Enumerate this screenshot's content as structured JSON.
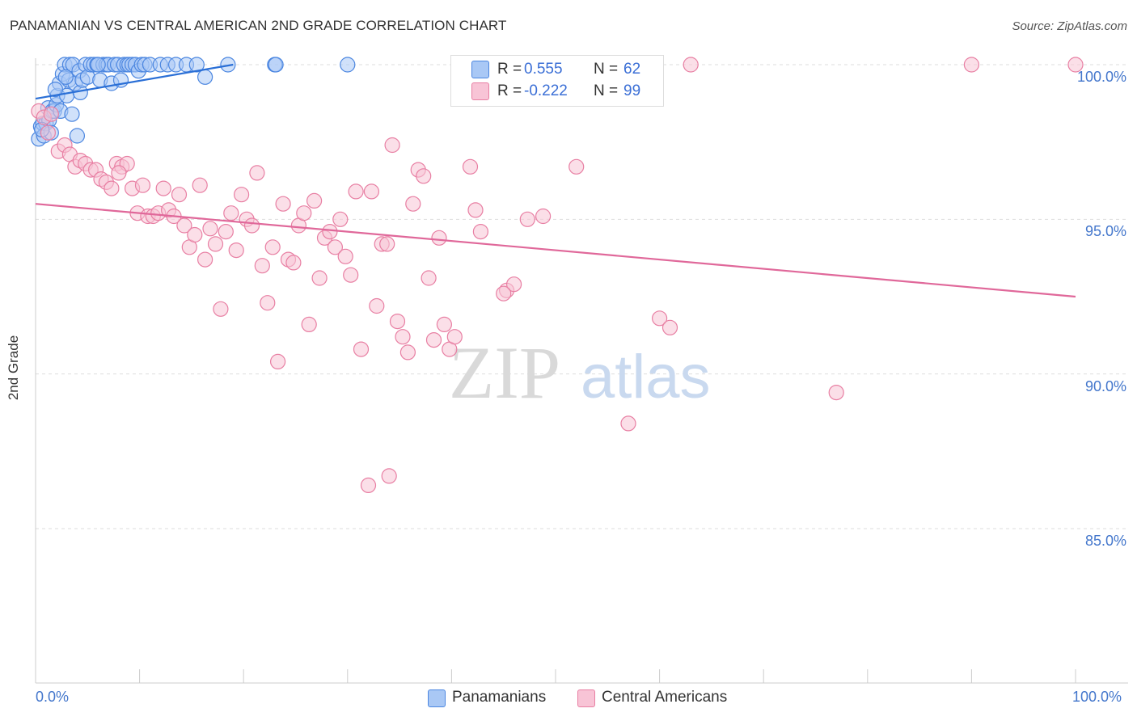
{
  "title": "PANAMANIAN VS CENTRAL AMERICAN 2ND GRADE CORRELATION CHART",
  "source": "Source: ZipAtlas.com",
  "watermark": {
    "part1": "ZIP",
    "part2": "atlas"
  },
  "legend_top": [
    {
      "r_label": "R =",
      "r_value": "0.555",
      "n_label": "N =",
      "n_value": "62",
      "color": "#7aaaf0"
    },
    {
      "r_label": "R =",
      "r_value": "-0.222",
      "n_label": "N =",
      "n_value": "99",
      "color": "#f4a3bf"
    }
  ],
  "legend_bottom": [
    {
      "label": "Panamanians",
      "color": "#7aaaf0"
    },
    {
      "label": "Central Americans",
      "color": "#f4a3bf"
    }
  ],
  "chart_data": {
    "type": "scatter",
    "title": "PANAMANIAN VS CENTRAL AMERICAN 2ND GRADE CORRELATION CHART",
    "xlabel": "",
    "ylabel": "2nd Grade",
    "x_tick_labels": [
      "0.0%",
      "100.0%"
    ],
    "y_tick_labels": [
      "100.0%",
      "95.0%",
      "90.0%",
      "85.0%"
    ],
    "y_ticks": [
      100,
      95,
      90,
      85
    ],
    "xlim": [
      0,
      100
    ],
    "ylim": [
      80.3,
      100.8
    ],
    "grid": true,
    "series": [
      {
        "name": "Panamanians",
        "color": "#4b86e0",
        "fill": "#a9c8f5",
        "trend": {
          "x": [
            0.0,
            19.0
          ],
          "y": [
            98.9,
            100.0
          ],
          "color": "#2a6fd6"
        },
        "points": [
          [
            0.3,
            97.6
          ],
          [
            0.5,
            98.0
          ],
          [
            0.7,
            98.1
          ],
          [
            0.8,
            97.7
          ],
          [
            1.0,
            98.1
          ],
          [
            1.2,
            98.6
          ],
          [
            1.3,
            98.2
          ],
          [
            1.5,
            97.8
          ],
          [
            1.6,
            98.5
          ],
          [
            1.8,
            98.5
          ],
          [
            2.0,
            98.7
          ],
          [
            2.1,
            99.0
          ],
          [
            2.3,
            99.4
          ],
          [
            2.4,
            98.5
          ],
          [
            2.6,
            99.7
          ],
          [
            2.8,
            100.0
          ],
          [
            3.0,
            99.0
          ],
          [
            3.2,
            99.5
          ],
          [
            3.3,
            100.0
          ],
          [
            3.5,
            98.4
          ],
          [
            3.6,
            100.0
          ],
          [
            3.8,
            99.4
          ],
          [
            4.0,
            97.7
          ],
          [
            4.2,
            99.8
          ],
          [
            4.3,
            99.1
          ],
          [
            4.5,
            99.5
          ],
          [
            4.8,
            100.0
          ],
          [
            5.0,
            99.6
          ],
          [
            5.3,
            100.0
          ],
          [
            5.6,
            100.0
          ],
          [
            5.9,
            100.0
          ],
          [
            6.2,
            99.5
          ],
          [
            6.5,
            100.0
          ],
          [
            6.8,
            100.0
          ],
          [
            7.0,
            100.0
          ],
          [
            7.3,
            99.4
          ],
          [
            7.6,
            100.0
          ],
          [
            7.9,
            100.0
          ],
          [
            8.2,
            99.5
          ],
          [
            8.5,
            100.0
          ],
          [
            8.8,
            100.0
          ],
          [
            9.0,
            100.0
          ],
          [
            9.3,
            100.0
          ],
          [
            9.6,
            100.0
          ],
          [
            9.9,
            99.8
          ],
          [
            10.2,
            100.0
          ],
          [
            10.5,
            100.0
          ],
          [
            11.0,
            100.0
          ],
          [
            12.0,
            100.0
          ],
          [
            12.7,
            100.0
          ],
          [
            13.5,
            100.0
          ],
          [
            14.5,
            100.0
          ],
          [
            15.5,
            100.0
          ],
          [
            16.3,
            99.6
          ],
          [
            18.5,
            100.0
          ],
          [
            23.0,
            100.0
          ],
          [
            23.1,
            100.0
          ],
          [
            30.0,
            100.0
          ],
          [
            0.6,
            97.9
          ],
          [
            1.9,
            99.2
          ],
          [
            2.9,
            99.6
          ],
          [
            6.0,
            100.0
          ]
        ]
      },
      {
        "name": "Central Americans",
        "color": "#e87fa3",
        "fill": "#f8c4d6",
        "trend": {
          "x": [
            0.0,
            100.0
          ],
          "y": [
            95.5,
            92.5
          ],
          "color": "#e0689a"
        },
        "points": [
          [
            0.3,
            98.5
          ],
          [
            0.8,
            98.3
          ],
          [
            1.2,
            97.8
          ],
          [
            1.5,
            98.4
          ],
          [
            2.2,
            97.2
          ],
          [
            2.8,
            97.4
          ],
          [
            3.3,
            97.1
          ],
          [
            3.8,
            96.7
          ],
          [
            4.3,
            96.9
          ],
          [
            4.8,
            96.8
          ],
          [
            5.3,
            96.6
          ],
          [
            5.8,
            96.6
          ],
          [
            6.3,
            96.3
          ],
          [
            6.8,
            96.2
          ],
          [
            7.3,
            96.0
          ],
          [
            7.8,
            96.8
          ],
          [
            8.3,
            96.7
          ],
          [
            8.8,
            96.8
          ],
          [
            9.3,
            96.0
          ],
          [
            9.8,
            95.2
          ],
          [
            10.3,
            96.1
          ],
          [
            10.8,
            95.1
          ],
          [
            11.3,
            95.1
          ],
          [
            11.8,
            95.2
          ],
          [
            12.3,
            96.0
          ],
          [
            12.8,
            95.3
          ],
          [
            13.3,
            95.1
          ],
          [
            13.8,
            95.8
          ],
          [
            14.3,
            94.8
          ],
          [
            14.8,
            94.1
          ],
          [
            15.3,
            94.5
          ],
          [
            15.8,
            96.1
          ],
          [
            16.3,
            93.7
          ],
          [
            16.8,
            94.7
          ],
          [
            17.3,
            94.2
          ],
          [
            17.8,
            92.1
          ],
          [
            18.3,
            94.6
          ],
          [
            18.8,
            95.2
          ],
          [
            19.3,
            94.0
          ],
          [
            19.8,
            95.8
          ],
          [
            20.3,
            95.0
          ],
          [
            20.8,
            94.8
          ],
          [
            21.3,
            96.5
          ],
          [
            21.8,
            93.5
          ],
          [
            22.3,
            92.3
          ],
          [
            22.8,
            94.1
          ],
          [
            23.3,
            90.4
          ],
          [
            23.8,
            95.5
          ],
          [
            24.3,
            93.7
          ],
          [
            24.8,
            93.6
          ],
          [
            25.3,
            94.8
          ],
          [
            25.8,
            95.2
          ],
          [
            26.3,
            91.6
          ],
          [
            26.8,
            95.6
          ],
          [
            27.3,
            93.1
          ],
          [
            27.8,
            94.4
          ],
          [
            28.3,
            94.6
          ],
          [
            28.8,
            94.1
          ],
          [
            29.3,
            95.0
          ],
          [
            29.8,
            93.8
          ],
          [
            30.3,
            93.2
          ],
          [
            30.8,
            95.9
          ],
          [
            31.3,
            90.8
          ],
          [
            32.3,
            95.9
          ],
          [
            32.8,
            92.2
          ],
          [
            33.3,
            94.2
          ],
          [
            33.8,
            94.2
          ],
          [
            34.3,
            97.4
          ],
          [
            34.8,
            91.7
          ],
          [
            35.3,
            91.2
          ],
          [
            35.8,
            90.7
          ],
          [
            36.3,
            95.5
          ],
          [
            36.8,
            96.6
          ],
          [
            37.3,
            96.4
          ],
          [
            37.8,
            93.1
          ],
          [
            38.3,
            91.1
          ],
          [
            38.8,
            94.4
          ],
          [
            39.3,
            91.6
          ],
          [
            39.8,
            90.8
          ],
          [
            40.3,
            91.2
          ],
          [
            41.8,
            96.7
          ],
          [
            42.3,
            95.3
          ],
          [
            42.8,
            94.6
          ],
          [
            45.3,
            92.7
          ],
          [
            46.0,
            92.9
          ],
          [
            47.3,
            95.0
          ],
          [
            48.8,
            95.1
          ],
          [
            52.0,
            96.7
          ],
          [
            57.0,
            88.4
          ],
          [
            60.0,
            91.8
          ],
          [
            61.0,
            91.5
          ],
          [
            77.0,
            89.4
          ],
          [
            32.0,
            86.4
          ],
          [
            34.0,
            86.7
          ],
          [
            63.0,
            100.0
          ],
          [
            90.0,
            100.0
          ],
          [
            100.0,
            100.0
          ],
          [
            45.0,
            92.6
          ],
          [
            8.0,
            96.5
          ]
        ]
      }
    ]
  }
}
